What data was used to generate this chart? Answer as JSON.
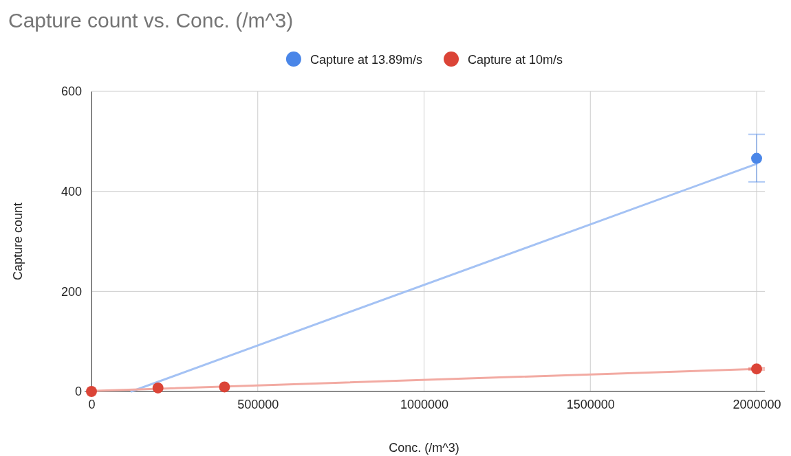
{
  "chart_data": {
    "type": "scatter",
    "title": "Capture count vs. Conc. (/m^3)",
    "xlabel": "Conc. (/m^3)",
    "ylabel": "Capture count",
    "series": [
      {
        "name": "Capture at 13.89m/s",
        "color": "#4a86e8",
        "marker": "circle",
        "x": [
          2000000
        ],
        "values": [
          466
        ],
        "errors": [
          [
            419,
            514
          ]
        ]
      },
      {
        "name": "Capture at 10m/s",
        "color": "#db4437",
        "marker": "circle",
        "x": [
          0,
          200000,
          400000,
          2000000
        ],
        "values": [
          0,
          7,
          9,
          45
        ],
        "errors": [
          null,
          null,
          null,
          [
            43,
            47
          ]
        ]
      },
      {
        "type": "line",
        "color": "#a4c2f4",
        "x": [
          120000,
          2000000
        ],
        "values": [
          0,
          455
        ]
      },
      {
        "type": "line",
        "color": "#f2aaa2",
        "x": [
          0,
          2000000
        ],
        "values": [
          1,
          45
        ]
      }
    ],
    "xlim": [
      0,
      2000000
    ],
    "xticks": [
      0,
      500000,
      1000000,
      1500000,
      2000000
    ],
    "ylim": [
      0,
      600
    ],
    "yticks": [
      0,
      200,
      400,
      600
    ],
    "grid": true,
    "legend": "top"
  }
}
